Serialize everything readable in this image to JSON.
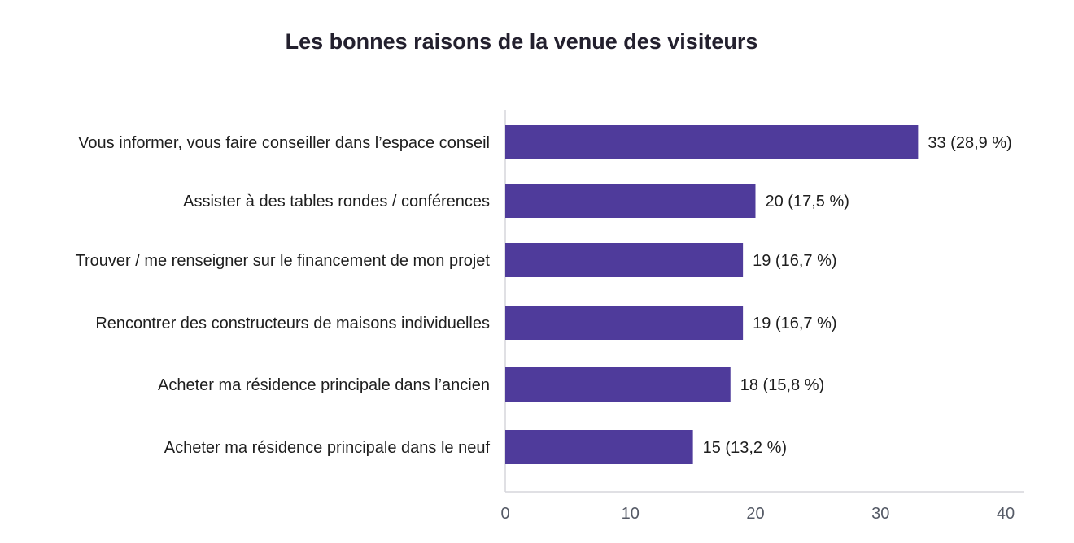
{
  "chart_data": {
    "type": "bar",
    "orientation": "horizontal",
    "title": "Les bonnes raisons de la venue des visiteurs",
    "categories": [
      "Vous informer, vous faire conseiller dans l’espace conseil",
      "Assister à des tables rondes / conférences",
      "Trouver / me renseigner sur le financement de mon projet",
      "Rencontrer des constructeurs de maisons individuelles",
      "Acheter ma résidence principale dans l’ancien",
      "Acheter ma résidence principale dans le neuf"
    ],
    "values": [
      33,
      20,
      19,
      19,
      18,
      15
    ],
    "data_labels": [
      "33 (28,9 %)",
      "20 (17,5 %)",
      "19 (16,7 %)",
      "19 (16,7 %)",
      "18 (15,8 %)",
      "15 (13,2 %)"
    ],
    "xlim": [
      0,
      40
    ],
    "xticks": [
      "0",
      "10",
      "20",
      "30",
      "40"
    ],
    "xlabel": "",
    "ylabel": "",
    "grid": false,
    "bar_color": "#4f3b9b"
  }
}
